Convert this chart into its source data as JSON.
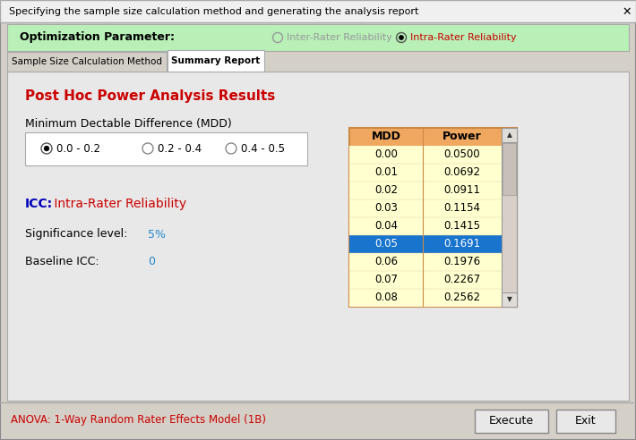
{
  "title": "Specifying the sample size calculation method and generating the analysis report",
  "bg_color": "#d4d0c8",
  "content_bg": "#e8e8e8",
  "white_bg": "#ffffff",
  "green_bar_color": "#b8f0b8",
  "orange_header": "#f0a860",
  "light_yellow": "#ffffd0",
  "blue_selected": "#1874CD",
  "red_text": "#cc0000",
  "blue_icc": "#0000bb",
  "cyan_text": "#2288cc",
  "gray_text": "#999999",
  "optimization_label": "Optimization Parameter:",
  "radio1_text": "Inter-Rater Reliability",
  "radio2_text": "Intra-Rater Reliability",
  "tab1_text": "Sample Size Calculation Method",
  "tab2_text": "Summary Report",
  "post_hoc_title": "Post Hoc Power Analysis Results",
  "mdd_label": "Minimum Dectable Difference (MDD)",
  "radio_mdd1": "0.0 - 0.2",
  "radio_mdd2": "0.2 - 0.4",
  "radio_mdd3": "0.4 - 0.5",
  "icc_label_bold": "ICC:",
  "icc_label_rest": " Intra-Rater Reliability",
  "sig_label": "Significance level:",
  "sig_value": "5%",
  "baseline_label": "Baseline ICC:",
  "baseline_value": "0",
  "footer_text": "ANOVA: 1-Way Random Rater Effects Model (1B)",
  "execute_btn": "Execute",
  "exit_btn": "Exit",
  "table_header": [
    "MDD",
    "Power"
  ],
  "table_data": [
    [
      "0.00",
      "0.0500"
    ],
    [
      "0.01",
      "0.0692"
    ],
    [
      "0.02",
      "0.0911"
    ],
    [
      "0.03",
      "0.1154"
    ],
    [
      "0.04",
      "0.1415"
    ],
    [
      "0.05",
      "0.1691"
    ],
    [
      "0.06",
      "0.1976"
    ],
    [
      "0.07",
      "0.2267"
    ],
    [
      "0.08",
      "0.2562"
    ]
  ],
  "selected_row": 5
}
